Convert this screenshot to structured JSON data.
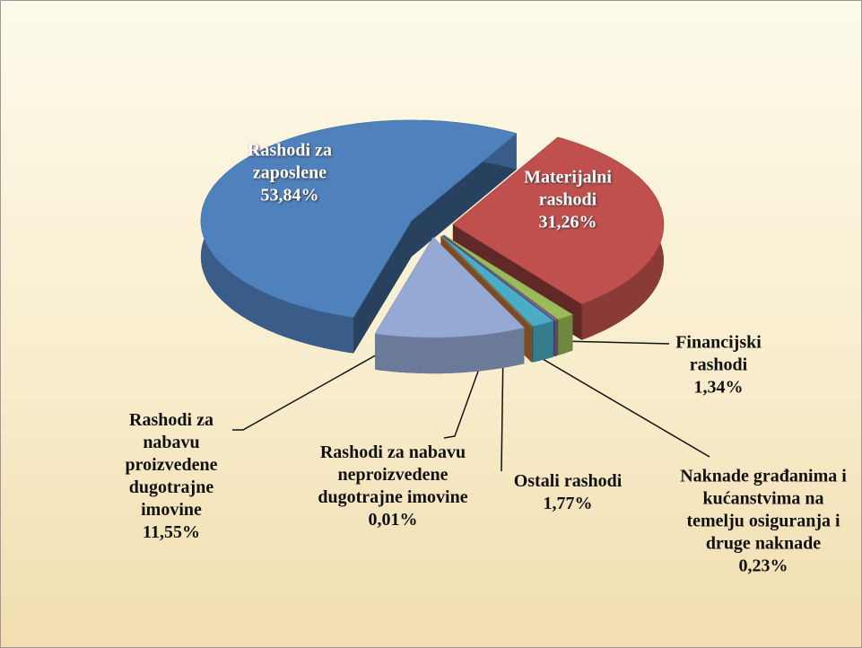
{
  "chart_data": {
    "type": "pie",
    "categories": [
      "Rashodi za zaposlene",
      "Materijalni rashodi",
      "Financijski rashodi",
      "Naknade građanima i kućanstvima na temelju osiguranja i druge naknade",
      "Ostali rashodi",
      "Rashodi za nabavu neproizvedene dugotrajne imovine",
      "Rashodi za nabavu proizvedene dugotrajne imovine"
    ],
    "values": [
      53.84,
      31.26,
      1.34,
      0.23,
      1.77,
      0.01,
      11.55
    ],
    "value_labels": [
      "53,84%",
      "31,26%",
      "1,34%",
      "0,23%",
      "1,77%",
      "0,01%",
      "11,55%"
    ],
    "colors": [
      "#4f81bd",
      "#c0504d",
      "#9bbb59",
      "#8064a2",
      "#4bacc6",
      "#f79646",
      "#95a9d4"
    ]
  }
}
